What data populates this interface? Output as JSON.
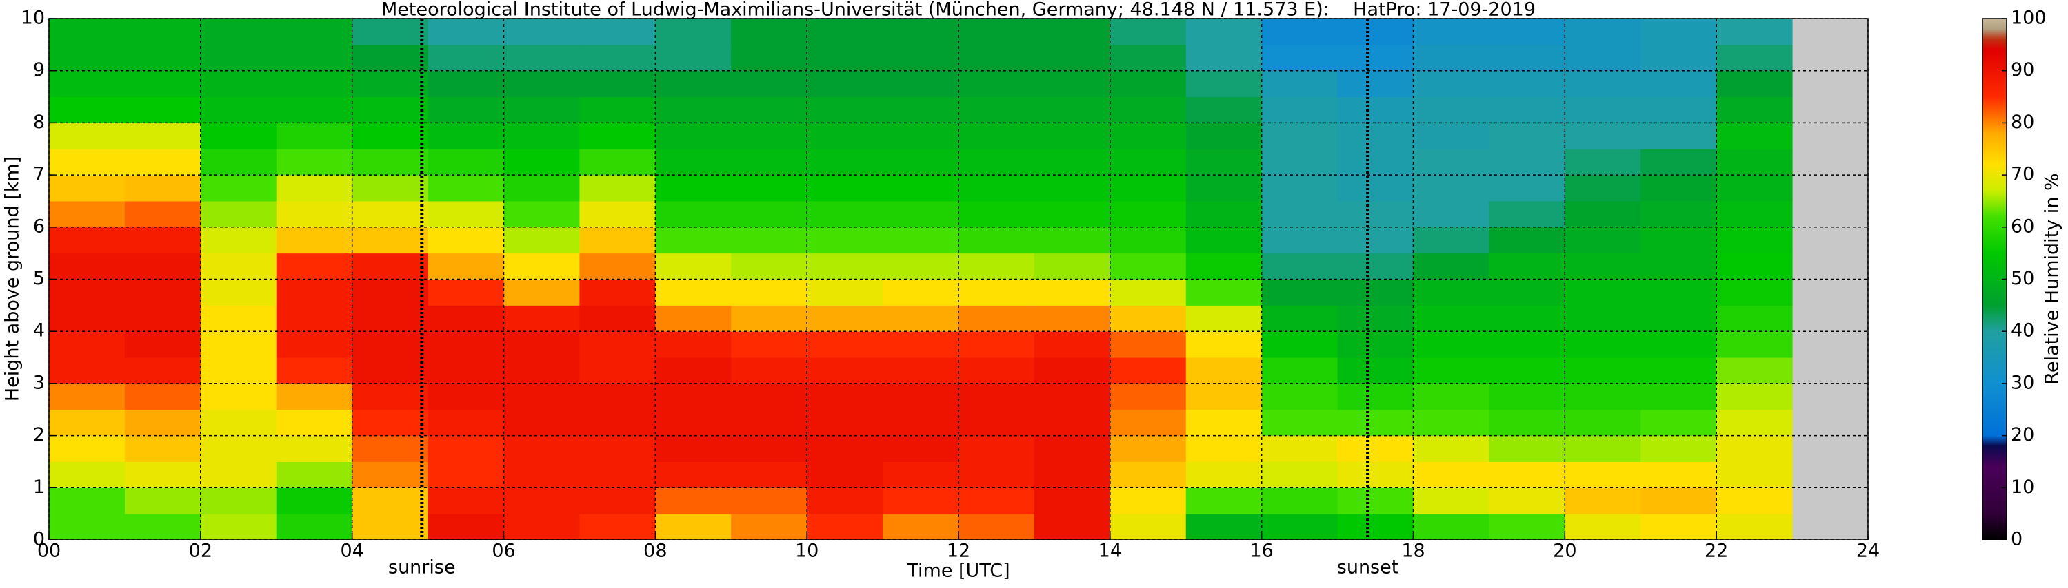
{
  "chart_data": {
    "type": "heatmap",
    "title": "Meteorological Institute of Ludwig-Maximilians-Universität (München, Germany; 48.148 N / 11.573 E):    HatPro: 17-09-2019",
    "x_label": "Time [UTC]",
    "y_label": "Height above ground [km]",
    "colorbar_label": "Relative Humidity in %",
    "xlim": [
      0,
      24
    ],
    "ylim": [
      0,
      10
    ],
    "clim": [
      0,
      100
    ],
    "xticks": [
      {
        "value": 0,
        "label": "00"
      },
      {
        "value": 2,
        "label": "02"
      },
      {
        "value": 4,
        "label": "04"
      },
      {
        "value": 6,
        "label": "06"
      },
      {
        "value": 8,
        "label": "08"
      },
      {
        "value": 10,
        "label": "10"
      },
      {
        "value": 12,
        "label": "12"
      },
      {
        "value": 14,
        "label": "14"
      },
      {
        "value": 16,
        "label": "16"
      },
      {
        "value": 18,
        "label": "18"
      },
      {
        "value": 20,
        "label": "20"
      },
      {
        "value": 22,
        "label": "22"
      },
      {
        "value": 24,
        "label": "24"
      }
    ],
    "yticks": [
      0,
      1,
      2,
      3,
      4,
      5,
      6,
      7,
      8,
      9,
      10
    ],
    "cticks": [
      0,
      10,
      20,
      30,
      40,
      50,
      60,
      70,
      80,
      90,
      100
    ],
    "grid": true,
    "background": "#c8c8c8",
    "colorscale": [
      [
        0,
        "#000000"
      ],
      [
        5,
        "#300038"
      ],
      [
        14,
        "#4a0058"
      ],
      [
        18,
        "#0a0a50"
      ],
      [
        20,
        "#0070d8"
      ],
      [
        30,
        "#1090d0"
      ],
      [
        40,
        "#20a0a0"
      ],
      [
        45,
        "#00a030"
      ],
      [
        55,
        "#00c800"
      ],
      [
        62,
        "#44e000"
      ],
      [
        67,
        "#ccee00"
      ],
      [
        72,
        "#ffe000"
      ],
      [
        78,
        "#ffaa00"
      ],
      [
        85,
        "#ff2a00"
      ],
      [
        94,
        "#e00000"
      ],
      [
        96,
        "#c03010"
      ],
      [
        98,
        "#b0a080"
      ],
      [
        100,
        "#c8b898"
      ]
    ],
    "annotations": [
      {
        "text": "sunrise",
        "x": 4.92
      },
      {
        "text": "sunset",
        "x": 17.4
      }
    ],
    "x": [
      0.5,
      1.5,
      2.5,
      3.5,
      4.5,
      5.5,
      6.5,
      7.5,
      8.5,
      9.5,
      10.5,
      11.5,
      12.5,
      13.5,
      14.5,
      15.5,
      16.5,
      17.5,
      18.5,
      19.5,
      20.5,
      21.5,
      22.5
    ],
    "y": [
      0.25,
      0.75,
      1.25,
      1.75,
      2.25,
      2.75,
      3.25,
      3.75,
      4.25,
      4.75,
      5.25,
      5.75,
      6.25,
      6.75,
      7.25,
      7.75,
      8.25,
      8.75,
      9.25,
      9.75
    ],
    "z": [
      [
        62,
        62,
        68,
        72,
        75,
        80,
        88,
        88,
        90,
        90,
        90,
        88,
        80,
        75,
        72,
        68,
        55,
        52,
        50,
        50
      ],
      [
        62,
        65,
        70,
        75,
        78,
        82,
        88,
        90,
        90,
        90,
        90,
        88,
        82,
        76,
        72,
        68,
        55,
        52,
        50,
        50
      ],
      [
        66,
        65,
        70,
        70,
        70,
        72,
        72,
        72,
        72,
        70,
        70,
        68,
        65,
        62,
        58,
        55,
        52,
        50,
        48,
        48
      ],
      [
        58,
        56,
        65,
        70,
        72,
        78,
        85,
        88,
        88,
        88,
        85,
        75,
        70,
        68,
        62,
        58,
        52,
        50,
        48,
        48
      ],
      [
        75,
        75,
        80,
        82,
        85,
        88,
        90,
        90,
        90,
        90,
        88,
        75,
        70,
        65,
        60,
        55,
        52,
        48,
        45,
        42
      ],
      [
        90,
        88,
        85,
        85,
        88,
        90,
        90,
        90,
        90,
        85,
        78,
        72,
        68,
        62,
        58,
        52,
        48,
        45,
        42,
        40
      ],
      [
        88,
        88,
        88,
        88,
        90,
        90,
        90,
        90,
        88,
        78,
        72,
        66,
        62,
        58,
        55,
        52,
        48,
        45,
        42,
        40
      ],
      [
        85,
        88,
        88,
        88,
        90,
        90,
        88,
        88,
        90,
        88,
        80,
        75,
        70,
        66,
        60,
        55,
        50,
        45,
        42,
        40
      ],
      [
        75,
        82,
        88,
        90,
        90,
        90,
        90,
        88,
        80,
        72,
        68,
        62,
        58,
        55,
        52,
        50,
        48,
        45,
        42,
        42
      ],
      [
        80,
        82,
        88,
        90,
        90,
        90,
        88,
        85,
        78,
        72,
        66,
        62,
        58,
        55,
        52,
        50,
        48,
        45,
        45,
        45
      ],
      [
        85,
        88,
        90,
        90,
        90,
        90,
        88,
        85,
        78,
        70,
        66,
        62,
        58,
        55,
        52,
        50,
        48,
        45,
        45,
        45
      ],
      [
        80,
        85,
        88,
        90,
        90,
        90,
        88,
        85,
        78,
        72,
        66,
        62,
        58,
        55,
        52,
        50,
        48,
        45,
        45,
        45
      ],
      [
        82,
        85,
        88,
        88,
        90,
        90,
        88,
        85,
        80,
        72,
        66,
        60,
        56,
        54,
        52,
        50,
        48,
        46,
        45,
        45
      ],
      [
        90,
        90,
        90,
        90,
        90,
        90,
        90,
        88,
        80,
        72,
        65,
        60,
        56,
        54,
        52,
        50,
        48,
        46,
        45,
        45
      ],
      [
        70,
        72,
        75,
        78,
        80,
        82,
        85,
        82,
        75,
        68,
        62,
        58,
        56,
        54,
        52,
        50,
        48,
        46,
        44,
        42
      ],
      [
        50,
        62,
        70,
        72,
        72,
        75,
        75,
        72,
        68,
        62,
        56,
        52,
        50,
        48,
        48,
        46,
        44,
        42,
        40,
        40
      ],
      [
        52,
        60,
        68,
        70,
        62,
        60,
        58,
        54,
        50,
        46,
        42,
        40,
        40,
        40,
        40,
        40,
        38,
        36,
        30,
        28
      ],
      [
        55,
        62,
        70,
        72,
        62,
        58,
        52,
        50,
        48,
        46,
        42,
        40,
        40,
        38,
        38,
        38,
        36,
        32,
        30,
        28
      ],
      [
        60,
        68,
        72,
        68,
        62,
        60,
        56,
        54,
        52,
        50,
        46,
        42,
        40,
        40,
        40,
        38,
        38,
        36,
        34,
        32
      ],
      [
        62,
        70,
        72,
        65,
        60,
        58,
        56,
        54,
        52,
        50,
        50,
        46,
        42,
        40,
        40,
        40,
        38,
        36,
        34,
        32
      ],
      [
        70,
        75,
        72,
        65,
        60,
        58,
        56,
        54,
        52,
        52,
        50,
        48,
        46,
        44,
        42,
        40,
        38,
        36,
        34,
        34
      ],
      [
        72,
        76,
        72,
        66,
        62,
        58,
        56,
        54,
        52,
        52,
        50,
        50,
        48,
        46,
        44,
        40,
        38,
        36,
        36,
        36
      ],
      [
        70,
        72,
        70,
        70,
        68,
        66,
        64,
        60,
        58,
        56,
        55,
        54,
        52,
        50,
        50,
        52,
        48,
        45,
        42,
        40
      ]
    ]
  }
}
